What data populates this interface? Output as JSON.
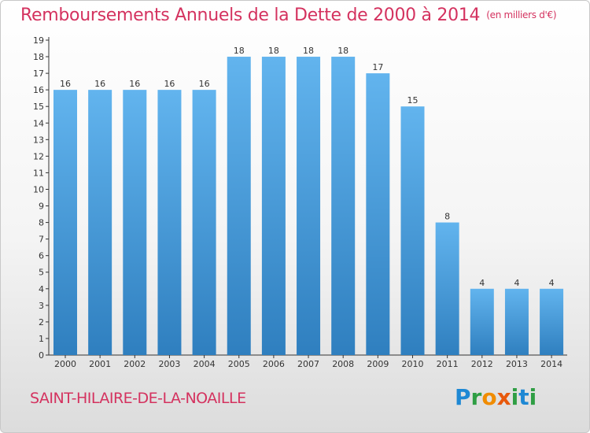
{
  "chart_data": {
    "type": "bar",
    "title": "Remboursements Annuels de la Dette de 2000 à 2014",
    "unit": "(en milliers d'€)",
    "categories": [
      "2000",
      "2001",
      "2002",
      "2003",
      "2004",
      "2005",
      "2006",
      "2007",
      "2008",
      "2009",
      "2010",
      "2011",
      "2012",
      "2013",
      "2014"
    ],
    "values": [
      16,
      16,
      16,
      16,
      16,
      18,
      18,
      18,
      18,
      17,
      15,
      8,
      4,
      4,
      4
    ],
    "ylim": [
      0,
      19
    ],
    "yticks": [
      0,
      1,
      2,
      3,
      4,
      5,
      6,
      7,
      8,
      9,
      10,
      11,
      12,
      13,
      14,
      15,
      16,
      17,
      18,
      19
    ],
    "xlabel": "",
    "ylabel": "",
    "bar_color": "#5aabe6",
    "grid": false
  },
  "commune": "SAINT-HILAIRE-DE-LA-NOAILLE",
  "logo": {
    "text": "Proxiti"
  },
  "colors": {
    "title": "#d4325f",
    "bar": "#5aabe6",
    "bar_dark": "#2f7fbf"
  }
}
